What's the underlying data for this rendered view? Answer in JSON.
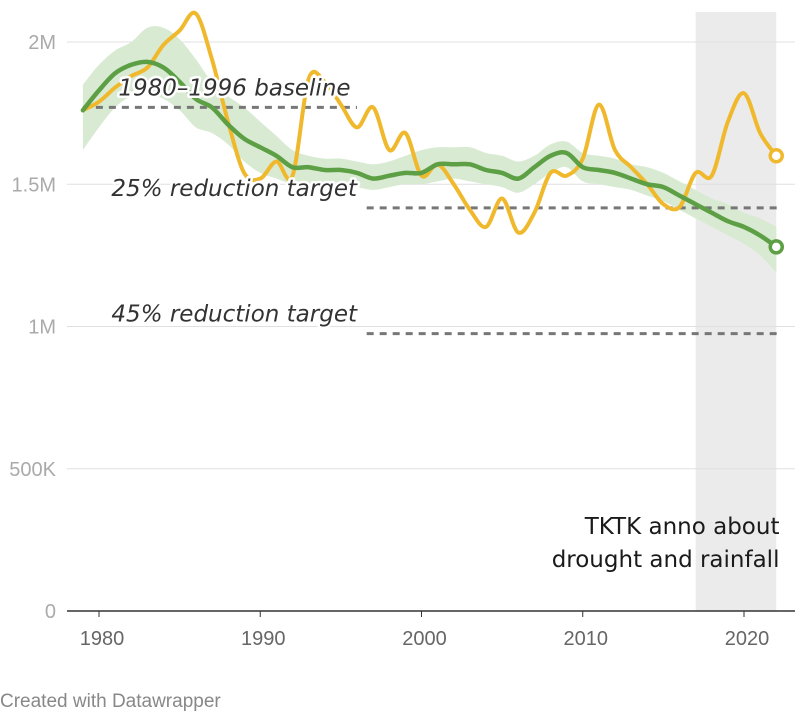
{
  "footer": {
    "credit": "Created with Datawrapper"
  },
  "colors": {
    "yellow": "#f0b92d",
    "green": "#5d9f44",
    "band": "#d9ead3",
    "shade": "#ebebeb",
    "refline": "#777777",
    "grid": "#e0e0e0"
  },
  "chart_data": {
    "type": "line",
    "title": "",
    "xlabel": "",
    "ylabel": "",
    "xlim": [
      1979,
      2022
    ],
    "ylim": [
      0,
      2000000
    ],
    "grid": "horizontal",
    "yticks": [
      {
        "value": 0,
        "label": "0"
      },
      {
        "value": 500000,
        "label": "500K"
      },
      {
        "value": 1000000,
        "label": "1M"
      },
      {
        "value": 1500000,
        "label": "1.5M"
      },
      {
        "value": 2000000,
        "label": "2M"
      }
    ],
    "xticks": [
      {
        "value": 1980,
        "label": "1980"
      },
      {
        "value": 1990,
        "label": "1990"
      },
      {
        "value": 2000,
        "label": "2000"
      },
      {
        "value": 2010,
        "label": "2010"
      },
      {
        "value": 2020,
        "label": "2020"
      }
    ],
    "x": [
      1979,
      1980,
      1981,
      1982,
      1983,
      1984,
      1985,
      1986,
      1987,
      1988,
      1989,
      1990,
      1991,
      1992,
      1993,
      1994,
      1995,
      1996,
      1997,
      1998,
      1999,
      2000,
      2001,
      2002,
      2003,
      2004,
      2005,
      2006,
      2007,
      2008,
      2009,
      2010,
      2011,
      2012,
      2013,
      2014,
      2015,
      2016,
      2017,
      2018,
      2019,
      2020,
      2021,
      2022
    ],
    "series": [
      {
        "values": [
          1760000,
          1790000,
          1840000,
          1880000,
          1910000,
          1990000,
          2040000,
          2100000,
          1940000,
          1720000,
          1540000,
          1520000,
          1580000,
          1530000,
          1870000,
          1860000,
          1780000,
          1700000,
          1770000,
          1620000,
          1680000,
          1530000,
          1570000,
          1500000,
          1410000,
          1350000,
          1450000,
          1330000,
          1400000,
          1540000,
          1530000,
          1590000,
          1780000,
          1620000,
          1560000,
          1500000,
          1430000,
          1420000,
          1540000,
          1530000,
          1720000,
          1820000,
          1680000,
          1600000
        ],
        "color": "#f0b92d",
        "end_marker": true
      },
      {
        "values": [
          1760000,
          1830000,
          1890000,
          1920000,
          1930000,
          1910000,
          1860000,
          1800000,
          1770000,
          1710000,
          1660000,
          1630000,
          1600000,
          1560000,
          1560000,
          1550000,
          1550000,
          1540000,
          1520000,
          1530000,
          1540000,
          1540000,
          1570000,
          1570000,
          1570000,
          1550000,
          1540000,
          1520000,
          1560000,
          1600000,
          1610000,
          1560000,
          1550000,
          1540000,
          1520000,
          1500000,
          1490000,
          1460000,
          1430000,
          1400000,
          1370000,
          1350000,
          1320000,
          1280000
        ],
        "upper": [
          1850000,
          1920000,
          1970000,
          2000000,
          2050000,
          2050000,
          2010000,
          1940000,
          1860000,
          1810000,
          1770000,
          1720000,
          1670000,
          1620000,
          1600000,
          1590000,
          1590000,
          1580000,
          1570000,
          1580000,
          1600000,
          1620000,
          1630000,
          1630000,
          1630000,
          1610000,
          1600000,
          1580000,
          1600000,
          1640000,
          1650000,
          1610000,
          1600000,
          1590000,
          1570000,
          1560000,
          1540000,
          1510000,
          1480000,
          1450000,
          1430000,
          1400000,
          1380000,
          1350000
        ],
        "lower": [
          1620000,
          1700000,
          1770000,
          1810000,
          1820000,
          1800000,
          1760000,
          1700000,
          1680000,
          1640000,
          1580000,
          1540000,
          1520000,
          1500000,
          1500000,
          1500000,
          1500000,
          1490000,
          1480000,
          1490000,
          1500000,
          1500000,
          1510000,
          1520000,
          1510000,
          1500000,
          1490000,
          1470000,
          1500000,
          1540000,
          1560000,
          1510000,
          1500000,
          1490000,
          1480000,
          1460000,
          1440000,
          1410000,
          1380000,
          1350000,
          1320000,
          1290000,
          1250000,
          1190000
        ],
        "color": "#5d9f44",
        "band_color": "#d9ead3",
        "end_marker": true
      }
    ],
    "shaded_region": {
      "x0": 2017,
      "x1": 2022,
      "color": "#ebebeb"
    },
    "reference_lines": [
      {
        "y": 1770000,
        "label": "1980–1996 baseline",
        "x_label_end": 1995.6,
        "line_from": 1979,
        "line_to": 1996
      },
      {
        "y": 1417000,
        "label": "25% reduction target",
        "x_label_end": 1996,
        "line_from": 1996.6,
        "line_to": 2022.3
      },
      {
        "y": 975000,
        "label": "45% reduction target",
        "x_label_end": 1996,
        "line_from": 1996.6,
        "line_to": 2022.3
      }
    ],
    "annotations": [
      {
        "lines": [
          "TKTK anno about",
          "drought and rainfall"
        ],
        "x": 2022.2,
        "y": 155000
      }
    ]
  }
}
